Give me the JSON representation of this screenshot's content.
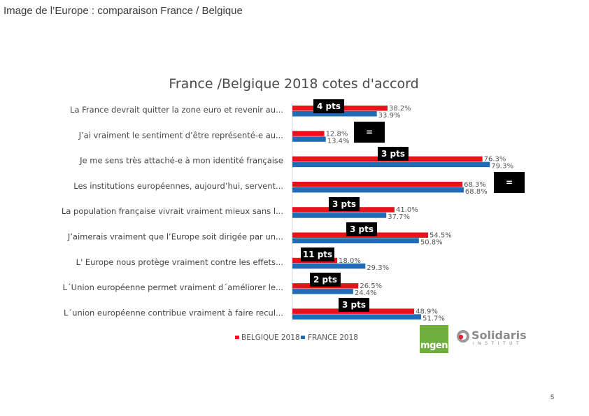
{
  "slide_title": "Image de l’Europe : comparaison France / Belgique",
  "page_number": "5",
  "logos": {
    "mgen": "mgen",
    "solidaris_word": "Solidaris",
    "solidaris_sub": "INSTITUT"
  },
  "colors": {
    "belgique": "#e8121a",
    "france": "#1f6bb5",
    "callout": "#000000"
  },
  "chart_data": {
    "type": "bar",
    "orientation": "horizontal",
    "title": "France /Belgique 2018 cotes d'accord",
    "categories": [
      "La France devrait quitter la zone euro et revenir au...",
      "J’ai vraiment le sentiment d’être représenté-e au...",
      "Je me sens très attaché-e à mon identité française",
      "Les institutions européennes, aujourd’hui, servent...",
      "La population française vivrait vraiment mieux sans l...",
      "J’aimerais vraiment que l’Europe soit dirigée par un...",
      "L' Europe nous protège vraiment contre les effets...",
      "L´Union européenne permet vraiment d´améliorer le...",
      "L´union européenne contribue vraiment à faire recul..."
    ],
    "series": [
      {
        "name": "BELGIQUE 2018",
        "values": [
          38.2,
          12.8,
          76.3,
          68.3,
          41.0,
          54.5,
          18.0,
          26.5,
          48.9
        ],
        "labels": [
          "38.2%",
          "12.8%",
          "76.3%",
          "68.3%",
          "41.0%",
          "54.5%",
          "18.0%",
          "26.5%",
          "48.9%"
        ]
      },
      {
        "name": "FRANCE 2018",
        "values": [
          33.9,
          13.4,
          79.3,
          68.8,
          37.7,
          50.8,
          29.3,
          24.4,
          51.7
        ],
        "labels": [
          "33.9%",
          "13.4%",
          "79.3%",
          "68.8%",
          "37.7%",
          "50.8%",
          "29.3%",
          "24.4%",
          "51.7%"
        ]
      }
    ],
    "annotations": [
      "4 pts",
      "=",
      "3 pts",
      "=",
      "3 pts",
      "3 pts",
      "11 pts",
      "2 pts",
      "3 pts"
    ],
    "xlim": [
      0,
      100
    ],
    "legend": "bottom"
  }
}
